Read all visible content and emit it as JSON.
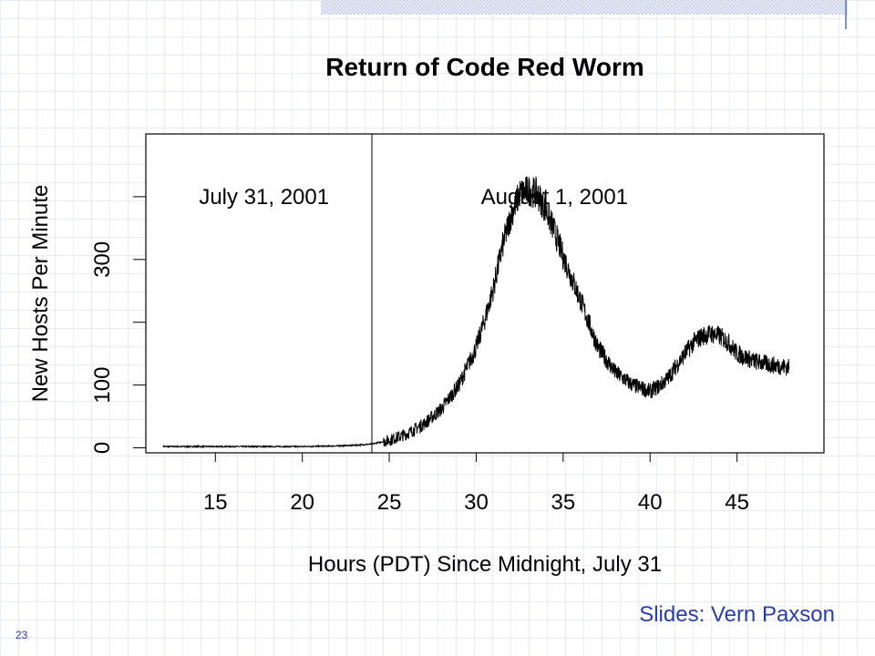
{
  "slide": {
    "credit": "Slides: Vern Paxson",
    "page_number": "23"
  },
  "chart_data": {
    "type": "line",
    "title": "Return of Code Red Worm",
    "xlabel": "Hours (PDT) Since Midnight, July 31",
    "ylabel": "New Hosts Per Minute",
    "xlim": [
      11,
      50
    ],
    "ylim": [
      -8,
      500
    ],
    "x_ticks": [
      15,
      20,
      25,
      30,
      35,
      40,
      45
    ],
    "x_tick_labels": [
      "15",
      "20",
      "25",
      "30",
      "35",
      "40",
      "45"
    ],
    "y_ticks": [
      0,
      100,
      200,
      300,
      400
    ],
    "y_tick_labels": [
      "0",
      "100",
      "",
      "300",
      ""
    ],
    "vline_x": 24,
    "annotations": [
      {
        "text": "July 31, 2001",
        "x": 17.8,
        "y": 400
      },
      {
        "text": "August 1, 2001",
        "x": 34.5,
        "y": 400
      }
    ],
    "series": [
      {
        "x": [
          12,
          14,
          16,
          18,
          20,
          22,
          23,
          24,
          25,
          26,
          27,
          28,
          29,
          30,
          30.5,
          31,
          31.5,
          32,
          32.5,
          33,
          33.5,
          34,
          34.5,
          35,
          36,
          37,
          38,
          39,
          40,
          40.5,
          41,
          41.5,
          42,
          42.5,
          43,
          43.5,
          44,
          44.5,
          45,
          46,
          47,
          48
        ],
        "y": [
          2,
          2,
          2,
          2,
          2,
          3,
          4,
          6,
          12,
          22,
          38,
          62,
          100,
          160,
          205,
          255,
          320,
          370,
          405,
          410,
          405,
          380,
          345,
          305,
          235,
          160,
          120,
          100,
          90,
          98,
          110,
          130,
          150,
          168,
          178,
          182,
          178,
          168,
          150,
          138,
          132,
          128
        ],
        "noise": 9
      }
    ]
  }
}
